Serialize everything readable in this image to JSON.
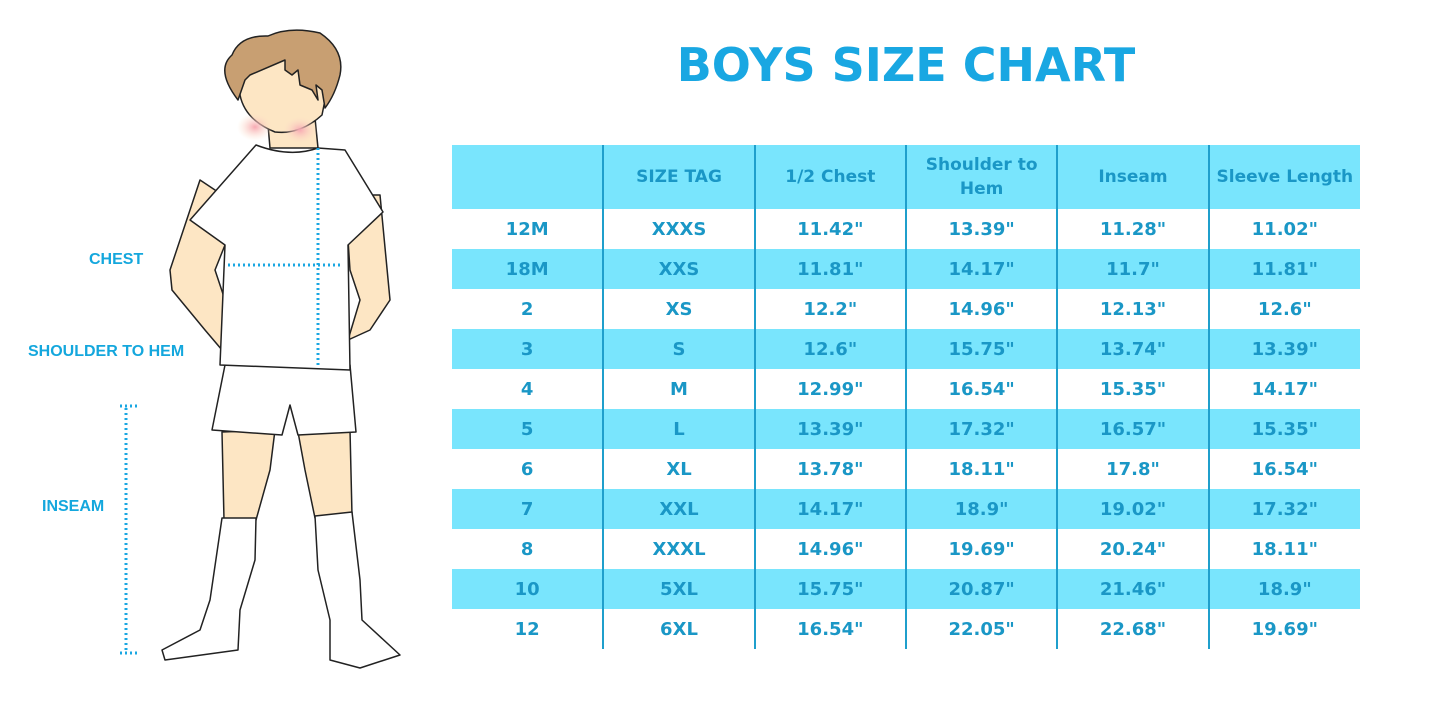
{
  "title": "BOYS SIZE CHART",
  "figure_labels": {
    "chest": "CHEST",
    "shoulder_to_hem": "SHOULDER TO HEM",
    "inseam": "INSEAM"
  },
  "colors": {
    "accent": "#19a7e2",
    "row_fill": "#79e5fd",
    "text": "#1a97c6"
  },
  "table": {
    "headers": [
      "",
      "SIZE TAG",
      "1/2 Chest",
      "Shoulder to Hem",
      "Inseam",
      "Sleeve Length"
    ],
    "rows": [
      [
        "12M",
        "XXXS",
        "11.42\"",
        "13.39\"",
        "11.28\"",
        "11.02\""
      ],
      [
        "18M",
        "XXS",
        "11.81\"",
        "14.17\"",
        "11.7\"",
        "11.81\""
      ],
      [
        "2",
        "XS",
        "12.2\"",
        "14.96\"",
        "12.13\"",
        "12.6\""
      ],
      [
        "3",
        "S",
        "12.6\"",
        "15.75\"",
        "13.74\"",
        "13.39\""
      ],
      [
        "4",
        "M",
        "12.99\"",
        "16.54\"",
        "15.35\"",
        "14.17\""
      ],
      [
        "5",
        "L",
        "13.39\"",
        "17.32\"",
        "16.57\"",
        "15.35\""
      ],
      [
        "6",
        "XL",
        "13.78\"",
        "18.11\"",
        "17.8\"",
        "16.54\""
      ],
      [
        "7",
        "XXL",
        "14.17\"",
        "18.9\"",
        "19.02\"",
        "17.32\""
      ],
      [
        "8",
        "XXXL",
        "14.96\"",
        "19.69\"",
        "20.24\"",
        "18.11\""
      ],
      [
        "10",
        "5XL",
        "15.75\"",
        "20.87\"",
        "21.46\"",
        "18.9\""
      ],
      [
        "12",
        "6XL",
        "16.54\"",
        "22.05\"",
        "22.68\"",
        "19.69\""
      ]
    ]
  }
}
